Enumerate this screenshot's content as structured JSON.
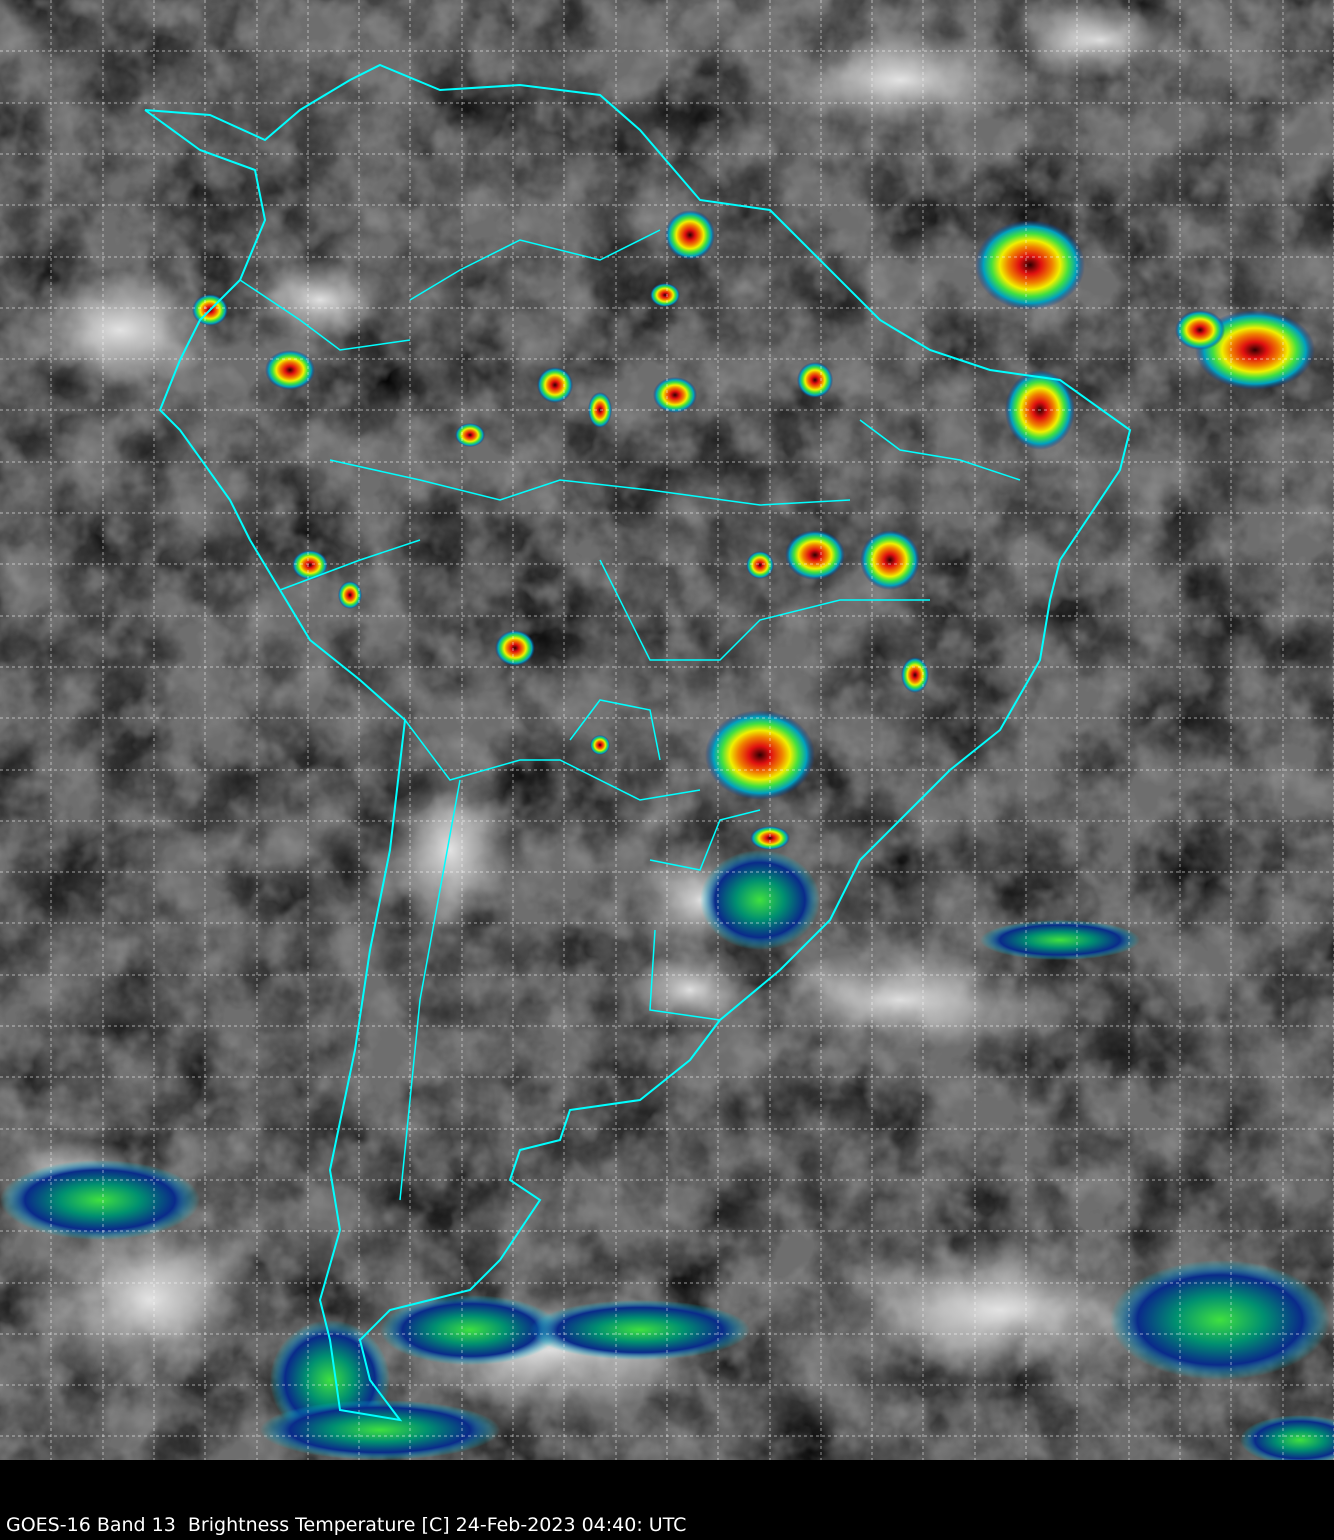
{
  "caption": "GOES-16 Band 13  Brightness Temperature [C] 24-Feb-2023 04:40: UTC",
  "map": {
    "satellite": "GOES-16",
    "band": "Band 13",
    "quantity": "Brightness Temperature [C]",
    "date": "24-Feb-2023",
    "time": "04:40: UTC",
    "colors": {
      "border": "#00ffff",
      "grid": "#ffffff",
      "background_gray": "#6e6e6e",
      "cold_blue": "#0a2a8a",
      "cyan": "#00c8d8",
      "green": "#40e040",
      "yellow": "#f0f000",
      "red": "#e01010",
      "darkred": "#400000"
    }
  }
}
